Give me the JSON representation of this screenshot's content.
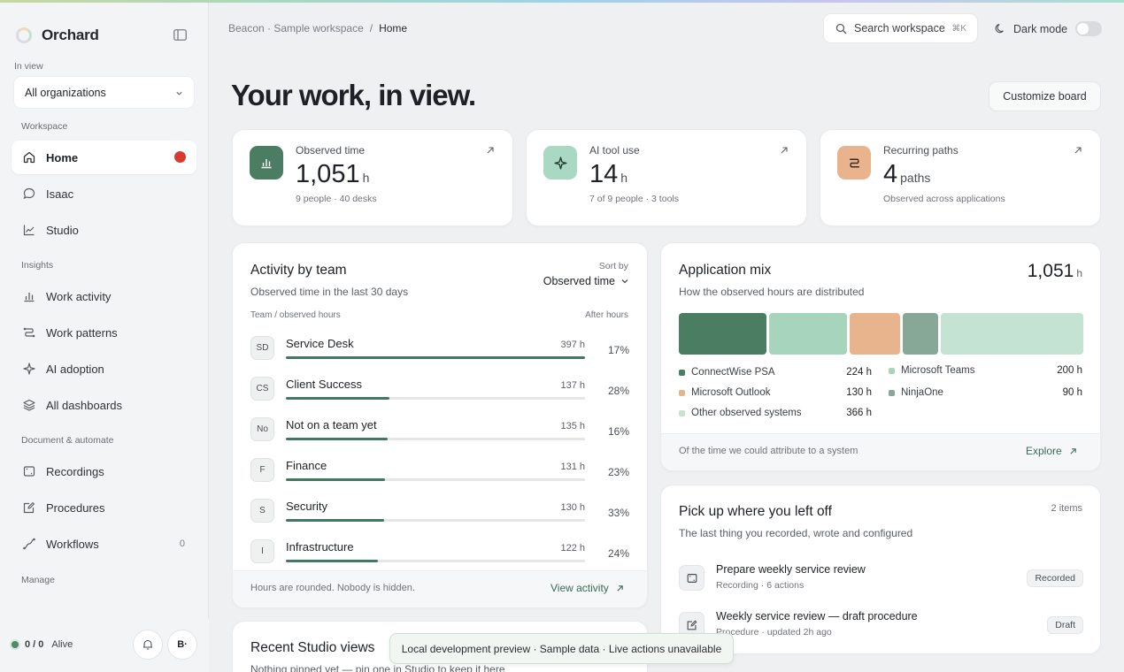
{
  "sidebar": {
    "brand": "Orchard",
    "in_view_label": "In view",
    "org_select": "All organizations",
    "sections": {
      "workspace": "Workspace",
      "insights": "Insights",
      "document": "Document & automate",
      "manage": "Manage"
    },
    "items": {
      "home": "Home",
      "isaac": "Isaac",
      "studio": "Studio",
      "work_activity": "Work activity",
      "work_patterns": "Work patterns",
      "ai_adoption": "AI adoption",
      "all_dashboards": "All dashboards",
      "recordings": "Recordings",
      "procedures": "Procedures",
      "workflows": "Workflows",
      "workflows_count": "0"
    },
    "status": {
      "value": "0 / 0",
      "label": "Alive"
    },
    "avatar": "B·"
  },
  "header": {
    "breadcrumb_root": "Beacon · Sample workspace",
    "breadcrumb_sep": "/",
    "breadcrumb_current": "Home",
    "search_placeholder": "Search workspace",
    "search_shortcut": "⌘K",
    "dark_mode": "Dark mode"
  },
  "page": {
    "title": "Your work, in view.",
    "customize": "Customize board"
  },
  "stats": [
    {
      "label": "Observed time",
      "value": "1,051",
      "unit": "h",
      "sub": "9 people · 40 desks"
    },
    {
      "label": "AI tool use",
      "value": "14",
      "unit": "h",
      "sub": "7 of 9 people · 3 tools"
    },
    {
      "label": "Recurring paths",
      "value": "4",
      "unit": "paths",
      "sub": "Observed across applications"
    }
  ],
  "activity": {
    "title": "Activity by team",
    "subtitle": "Observed time in the last 30 days",
    "sort_label": "Sort by",
    "sort_value": "Observed time",
    "col_left": "Team / observed hours",
    "col_right": "After hours",
    "teams": [
      {
        "badge": "SD",
        "name": "Service Desk",
        "hours": "397 h",
        "pct": "17%",
        "share": 1.0
      },
      {
        "badge": "CS",
        "name": "Client Success",
        "hours": "137 h",
        "pct": "28%",
        "share": 0.345
      },
      {
        "badge": "No",
        "name": "Not on a team yet",
        "hours": "135 h",
        "pct": "16%",
        "share": 0.34
      },
      {
        "badge": "F",
        "name": "Finance",
        "hours": "131 h",
        "pct": "23%",
        "share": 0.33
      },
      {
        "badge": "S",
        "name": "Security",
        "hours": "130 h",
        "pct": "33%",
        "share": 0.327
      },
      {
        "badge": "I",
        "name": "Infrastructure",
        "hours": "122 h",
        "pct": "24%",
        "share": 0.307
      }
    ],
    "footer_note": "Hours are rounded. Nobody is hidden.",
    "footer_link": "View activity"
  },
  "app_mix": {
    "title": "Application mix",
    "subtitle": "How the observed hours are distributed",
    "total": "1,051",
    "total_unit": "h",
    "apps": [
      {
        "name": "ConnectWise PSA",
        "hours": "224 h",
        "value": 224,
        "color": "#4a7d62"
      },
      {
        "name": "Microsoft Teams",
        "hours": "200 h",
        "value": 200,
        "color": "#a7d4bd"
      },
      {
        "name": "Microsoft Outlook",
        "hours": "130 h",
        "value": 130,
        "color": "#e8b48e"
      },
      {
        "name": "NinjaOne",
        "hours": "90 h",
        "value": 90,
        "color": "#87a797"
      },
      {
        "name": "Other observed systems",
        "hours": "366 h",
        "value": 366,
        "color": "#c4e3d2"
      }
    ],
    "footer_note": "Of the time we could attribute to a system",
    "footer_link": "Explore"
  },
  "pickup": {
    "title": "Pick up where you left off",
    "subtitle": "The last thing you recorded, wrote and configured",
    "count": "2 items",
    "tasks": [
      {
        "title": "Prepare weekly service review",
        "sub": "Recording · 6 actions",
        "tag": "Recorded"
      },
      {
        "title": "Weekly service review — draft procedure",
        "sub": "Procedure · updated 2h ago",
        "tag": "Draft"
      }
    ]
  },
  "recent": {
    "title": "Recent Studio views",
    "subtitle": "Nothing pinned yet — pin one in Studio to keep it here"
  },
  "toast": "Local development preview · Sample data · Live actions unavailable"
}
